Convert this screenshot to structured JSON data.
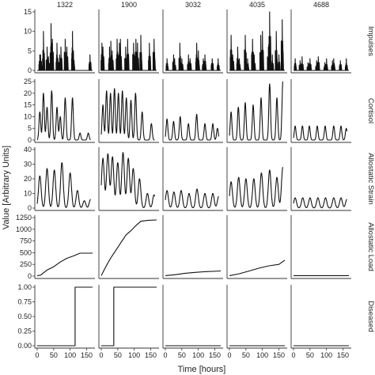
{
  "chart_data": {
    "type": "line",
    "title": "",
    "xlabel": "Time [hours]",
    "ylabel": "Value [Arbitrary Units]",
    "columns": [
      "1322",
      "1900",
      "3032",
      "4035",
      "4688"
    ],
    "rows": [
      {
        "name": "Impulses",
        "ylim": [
          0,
          15
        ],
        "yticks": [
          "0",
          "5",
          "10",
          "15"
        ]
      },
      {
        "name": "Cortisol",
        "ylim": [
          0,
          25
        ],
        "yticks": [
          "0",
          "5",
          "10",
          "15",
          "20",
          "25"
        ]
      },
      {
        "name": "Allostatic Strain",
        "ylim": [
          0,
          40
        ],
        "yticks": [
          "0",
          "10",
          "20",
          "30",
          "40"
        ]
      },
      {
        "name": "Allostatic Load",
        "ylim": [
          0,
          1250
        ],
        "yticks": [
          "0",
          "250",
          "500",
          "750",
          "1000",
          "1250"
        ]
      },
      {
        "name": "Diseased",
        "ylim": [
          0,
          1
        ],
        "yticks": [
          "0.00",
          "0.25",
          "0.50",
          "0.75",
          "1.00"
        ]
      }
    ],
    "xlim": [
      0,
      168
    ],
    "xticks": [
      "0",
      "50",
      "100",
      "150"
    ],
    "series": {
      "impulses": [
        [
          [
            8,
            4
          ],
          [
            10,
            4
          ],
          [
            19,
            10
          ],
          [
            30,
            6
          ],
          [
            34,
            3.5
          ],
          [
            42,
            12
          ],
          [
            46,
            8
          ],
          [
            60,
            7
          ],
          [
            68,
            4
          ],
          [
            72,
            6
          ],
          [
            85,
            8
          ],
          [
            90,
            6
          ],
          [
            107,
            10
          ],
          [
            110,
            5
          ],
          [
            160,
            4
          ]
        ],
        [
          [
            2,
            7
          ],
          [
            5,
            6
          ],
          [
            25,
            6
          ],
          [
            29,
            7.5
          ],
          [
            33,
            5
          ],
          [
            48,
            8
          ],
          [
            55,
            7
          ],
          [
            58,
            8
          ],
          [
            74,
            6
          ],
          [
            80,
            8
          ],
          [
            98,
            7
          ],
          [
            105,
            8
          ],
          [
            110,
            7
          ],
          [
            120,
            9
          ],
          [
            146,
            7
          ],
          [
            160,
            8
          ]
        ],
        [
          [
            5,
            3
          ],
          [
            25,
            4
          ],
          [
            28,
            3
          ],
          [
            44,
            7
          ],
          [
            50,
            3
          ],
          [
            70,
            4
          ],
          [
            75,
            3
          ],
          [
            95,
            7
          ],
          [
            100,
            5
          ],
          [
            115,
            3
          ],
          [
            120,
            4
          ],
          [
            142,
            3
          ],
          [
            160,
            3
          ]
        ],
        [
          [
            5,
            9
          ],
          [
            10,
            4
          ],
          [
            25,
            6
          ],
          [
            30,
            3
          ],
          [
            48,
            9
          ],
          [
            55,
            3
          ],
          [
            70,
            8
          ],
          [
            75,
            4
          ],
          [
            95,
            9
          ],
          [
            100,
            10
          ],
          [
            118,
            6
          ],
          [
            122,
            15
          ],
          [
            130,
            4
          ],
          [
            142,
            10
          ],
          [
            150,
            4
          ],
          [
            160,
            13
          ]
        ],
        [
          [
            5,
            3
          ],
          [
            20,
            2.5
          ],
          [
            26,
            3.5
          ],
          [
            44,
            2
          ],
          [
            50,
            3
          ],
          [
            70,
            2.5
          ],
          [
            75,
            3.5
          ],
          [
            95,
            2
          ],
          [
            100,
            3
          ],
          [
            118,
            2.5
          ],
          [
            122,
            3
          ],
          [
            142,
            2.5
          ],
          [
            160,
            3
          ]
        ]
      ],
      "cortisol": [
        [
          [
            8,
            12
          ],
          [
            19,
            20
          ],
          [
            30,
            14
          ],
          [
            44,
            21
          ],
          [
            60,
            14
          ],
          [
            70,
            10
          ],
          [
            85,
            18
          ],
          [
            107,
            18
          ],
          [
            130,
            3
          ],
          [
            155,
            3
          ]
        ],
        [
          [
            5,
            15
          ],
          [
            16,
            21
          ],
          [
            28,
            20
          ],
          [
            40,
            22
          ],
          [
            52,
            20
          ],
          [
            64,
            21
          ],
          [
            76,
            18
          ],
          [
            90,
            17
          ],
          [
            104,
            20
          ],
          [
            124,
            12
          ],
          [
            152,
            7
          ]
        ],
        [
          [
            5,
            9
          ],
          [
            25,
            8
          ],
          [
            45,
            10
          ],
          [
            70,
            7
          ],
          [
            95,
            11
          ],
          [
            120,
            7
          ],
          [
            144,
            7
          ],
          [
            158,
            5
          ]
        ],
        [
          [
            5,
            12
          ],
          [
            27,
            14
          ],
          [
            48,
            16
          ],
          [
            72,
            15
          ],
          [
            96,
            18
          ],
          [
            122,
            24
          ],
          [
            144,
            18
          ],
          [
            162,
            25
          ]
        ],
        [
          [
            5,
            6
          ],
          [
            27,
            6
          ],
          [
            48,
            6
          ],
          [
            72,
            6
          ],
          [
            96,
            6
          ],
          [
            122,
            6
          ],
          [
            144,
            6
          ],
          [
            160,
            5
          ]
        ]
      ],
      "strain": [
        [
          [
            8,
            22
          ],
          [
            30,
            27
          ],
          [
            52,
            26
          ],
          [
            75,
            31
          ],
          [
            100,
            24
          ],
          [
            122,
            12
          ],
          [
            143,
            5
          ],
          [
            162,
            6
          ]
        ],
        [
          [
            5,
            34
          ],
          [
            20,
            37
          ],
          [
            34,
            35
          ],
          [
            50,
            31
          ],
          [
            66,
            38
          ],
          [
            82,
            34
          ],
          [
            97,
            27
          ],
          [
            116,
            20
          ],
          [
            140,
            10
          ],
          [
            160,
            9
          ]
        ],
        [
          [
            5,
            12
          ],
          [
            26,
            11
          ],
          [
            48,
            12
          ],
          [
            72,
            10
          ],
          [
            96,
            13
          ],
          [
            120,
            10
          ],
          [
            144,
            10
          ],
          [
            162,
            8
          ]
        ],
        [
          [
            5,
            18
          ],
          [
            28,
            21
          ],
          [
            50,
            20
          ],
          [
            74,
            20
          ],
          [
            97,
            24
          ],
          [
            122,
            26
          ],
          [
            144,
            21
          ],
          [
            162,
            28
          ]
        ],
        [
          [
            5,
            7
          ],
          [
            28,
            7
          ],
          [
            50,
            7
          ],
          [
            74,
            7
          ],
          [
            97,
            7
          ],
          [
            122,
            7
          ],
          [
            144,
            7
          ],
          [
            162,
            6
          ]
        ]
      ],
      "load": [
        [
          [
            0,
            10
          ],
          [
            10,
            20
          ],
          [
            30,
            130
          ],
          [
            50,
            200
          ],
          [
            70,
            300
          ],
          [
            90,
            380
          ],
          [
            110,
            430
          ],
          [
            130,
            490
          ],
          [
            168,
            490
          ]
        ],
        [
          [
            0,
            10
          ],
          [
            10,
            150
          ],
          [
            20,
            280
          ],
          [
            30,
            400
          ],
          [
            45,
            560
          ],
          [
            60,
            720
          ],
          [
            75,
            880
          ],
          [
            90,
            970
          ],
          [
            105,
            1080
          ],
          [
            120,
            1170
          ],
          [
            140,
            1190
          ],
          [
            168,
            1200
          ]
        ],
        [
          [
            0,
            10
          ],
          [
            30,
            30
          ],
          [
            60,
            60
          ],
          [
            90,
            80
          ],
          [
            120,
            95
          ],
          [
            168,
            110
          ]
        ],
        [
          [
            0,
            10
          ],
          [
            30,
            50
          ],
          [
            60,
            110
          ],
          [
            90,
            170
          ],
          [
            120,
            220
          ],
          [
            150,
            250
          ],
          [
            168,
            340
          ]
        ],
        [
          [
            0,
            10
          ],
          [
            168,
            10
          ]
        ]
      ],
      "diseased_onset": [
        115,
        38,
        null,
        null,
        null
      ]
    }
  }
}
